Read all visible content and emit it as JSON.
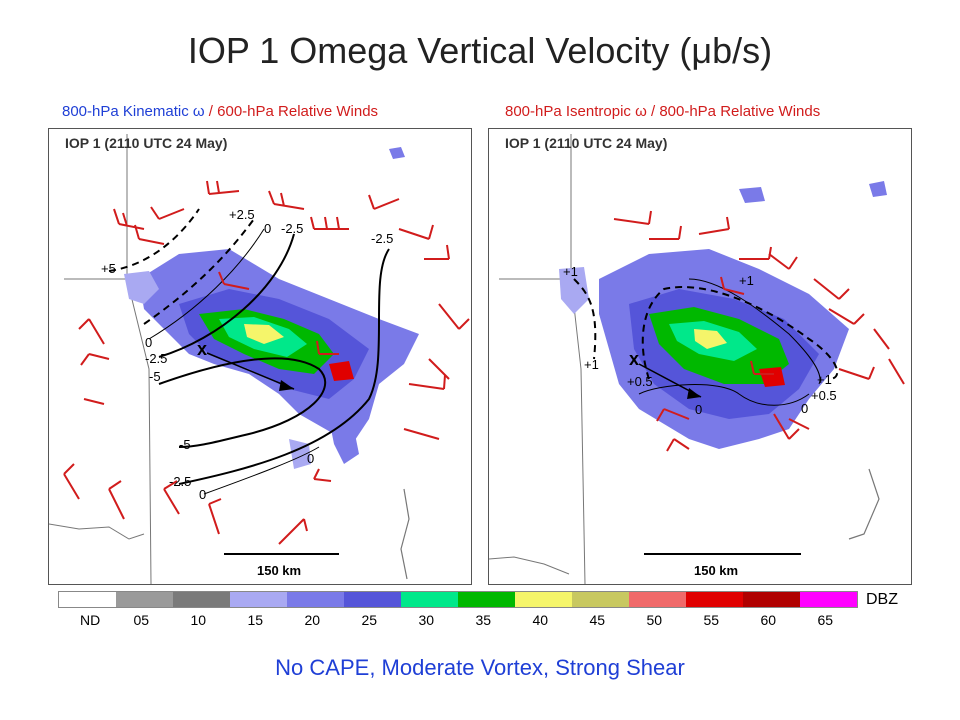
{
  "title": "IOP 1 Omega Vertical Velocity (μb/s)",
  "subtitles": {
    "left": {
      "part_blue": "800-hPa Kinematic",
      "symbol": "ω",
      "part_red": " / 600-hPa Relative Winds"
    },
    "right": {
      "part_red1": "800-hPa Isentropic",
      "symbol": "ω",
      "part_red2": " / 800-hPa Relative Winds"
    }
  },
  "panels": {
    "left": {
      "label": "IOP 1 (2110 UTC 24 May)",
      "scale": "150 km",
      "contour_labels": [
        "+2.5",
        "0",
        "-2.5",
        "-2.5",
        "+5",
        "0",
        "-2.5",
        "-5",
        "-5",
        "-2.5",
        "0",
        "0"
      ],
      "marker": "x"
    },
    "right": {
      "label": "IOP 1 (2110 UTC 24 May)",
      "scale": "150 km",
      "contour_labels": [
        "+1",
        "+1",
        "+1",
        "+0.5",
        "0",
        "0",
        "+1",
        "+0.5"
      ],
      "marker": "x"
    }
  },
  "legend": {
    "unit": "DBZ",
    "nd_label": "ND",
    "ticks": [
      "05",
      "10",
      "15",
      "20",
      "25",
      "30",
      "35",
      "40",
      "45",
      "50",
      "55",
      "60",
      "65"
    ],
    "colors": [
      "#ffffff",
      "#9a9a9a",
      "#7a7a7a",
      "#a9a9f2",
      "#7a7ae8",
      "#5555d9",
      "#00e88a",
      "#00b800",
      "#f5f56a",
      "#c8c860",
      "#f06a6a",
      "#e00000",
      "#b00000",
      "#ff00ff"
    ]
  },
  "footer": "No CAPE, Moderate Vortex, Strong Shear"
}
